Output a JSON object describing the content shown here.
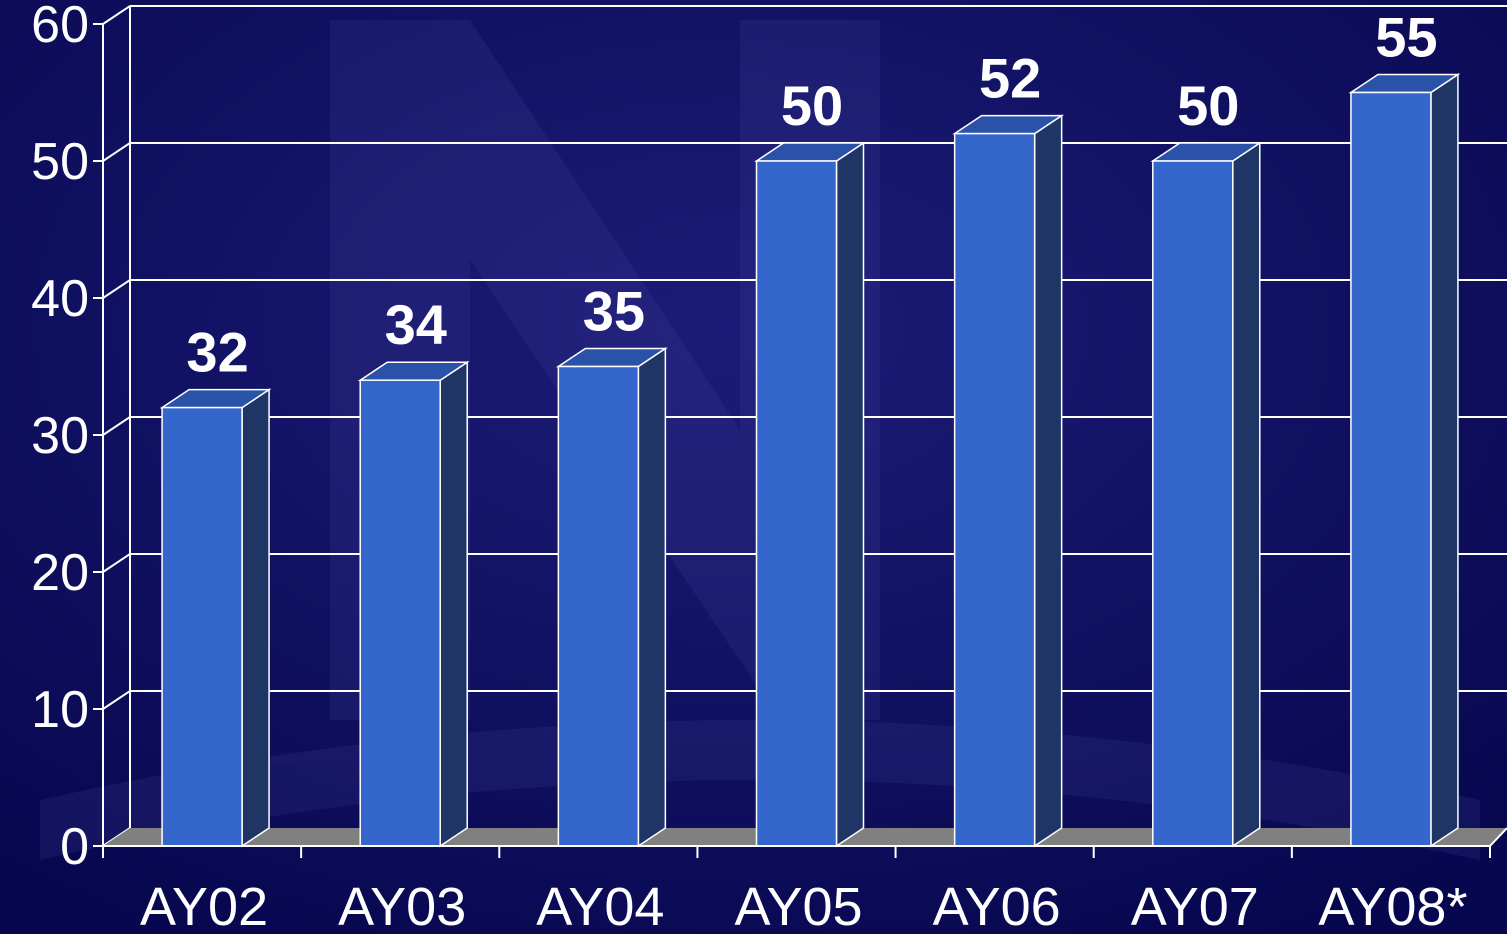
{
  "chart_data": {
    "type": "bar",
    "style": "3d-column",
    "categories": [
      "AY02",
      "AY03",
      "AY04",
      "AY05",
      "AY06",
      "AY07",
      "AY08*"
    ],
    "values": [
      32,
      34,
      35,
      50,
      52,
      50,
      55
    ],
    "data_labels": [
      "32",
      "34",
      "35",
      "50",
      "52",
      "50",
      "55"
    ],
    "y_ticks": [
      0,
      10,
      20,
      30,
      40,
      50,
      60
    ],
    "ylim": [
      0,
      60
    ],
    "title": "",
    "xlabel": "",
    "ylabel": "",
    "grid": true,
    "legend": "none"
  },
  "colors": {
    "background": "#0a0a5a",
    "bar_front": "#3566cc",
    "bar_top": "#2a52a8",
    "bar_side": "#1e3566",
    "bar_edge": "#ffffff",
    "grid": "#ffffff",
    "floor": "#808080",
    "text": "#ffffff"
  }
}
